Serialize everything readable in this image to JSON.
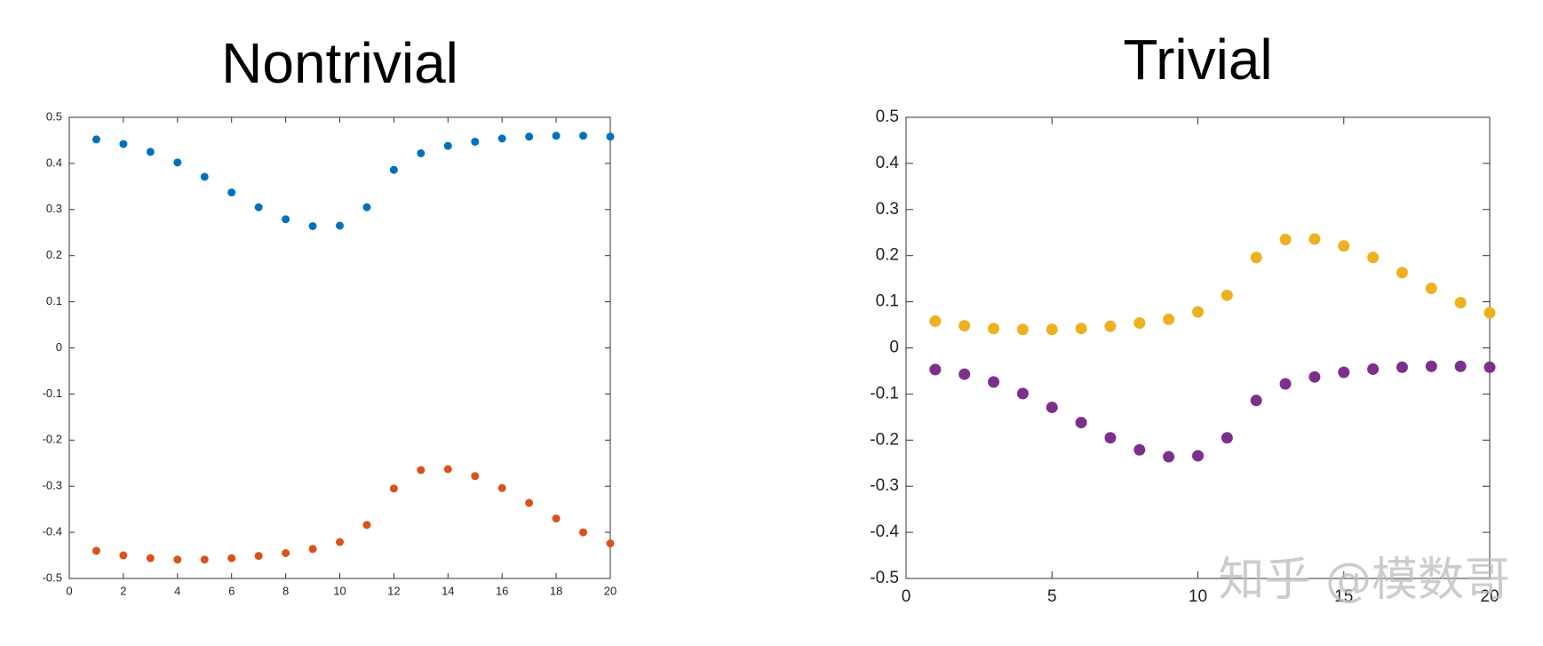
{
  "chart_data": [
    {
      "type": "scatter",
      "title": "Nontrivial",
      "x": [
        1,
        2,
        3,
        4,
        5,
        6,
        7,
        8,
        9,
        10,
        11,
        12,
        13,
        14,
        15,
        16,
        17,
        18,
        19,
        20
      ],
      "series": [
        {
          "color": "#0072bd",
          "values": [
            0.452,
            0.442,
            0.425,
            0.402,
            0.371,
            0.337,
            0.305,
            0.279,
            0.264,
            0.265,
            0.305,
            0.386,
            0.422,
            0.438,
            0.447,
            0.454,
            0.458,
            0.46,
            0.46,
            0.458
          ]
        },
        {
          "color": "#d95319",
          "values": [
            -0.44,
            -0.45,
            -0.456,
            -0.459,
            -0.459,
            -0.456,
            -0.451,
            -0.445,
            -0.436,
            -0.421,
            -0.384,
            -0.305,
            -0.265,
            -0.263,
            -0.278,
            -0.304,
            -0.336,
            -0.37,
            -0.4,
            -0.424
          ]
        }
      ],
      "xlim": [
        0,
        20
      ],
      "xticks": [
        0,
        2,
        4,
        6,
        8,
        10,
        12,
        14,
        16,
        18,
        20
      ],
      "ylim": [
        -0.5,
        0.5
      ],
      "yticks": [
        -0.5,
        -0.4,
        -0.3,
        -0.2,
        -0.1,
        0,
        0.1,
        0.2,
        0.3,
        0.4,
        0.5
      ]
    },
    {
      "type": "scatter",
      "title": "Trivial",
      "x": [
        1,
        2,
        3,
        4,
        5,
        6,
        7,
        8,
        9,
        10,
        11,
        12,
        13,
        14,
        15,
        16,
        17,
        18,
        19,
        20
      ],
      "series": [
        {
          "color": "#edb120",
          "values": [
            0.058,
            0.048,
            0.042,
            0.04,
            0.04,
            0.042,
            0.047,
            0.054,
            0.062,
            0.078,
            0.114,
            0.196,
            0.235,
            0.236,
            0.221,
            0.196,
            0.163,
            0.129,
            0.098,
            0.076
          ]
        },
        {
          "color": "#7e2f8e",
          "values": [
            -0.047,
            -0.057,
            -0.074,
            -0.099,
            -0.129,
            -0.162,
            -0.195,
            -0.221,
            -0.236,
            -0.234,
            -0.195,
            -0.114,
            -0.078,
            -0.063,
            -0.053,
            -0.046,
            -0.042,
            -0.04,
            -0.04,
            -0.042
          ]
        }
      ],
      "xlim": [
        0,
        20
      ],
      "xticks": [
        0,
        5,
        10,
        15,
        20
      ],
      "ylim": [
        -0.5,
        0.5
      ],
      "yticks": [
        -0.5,
        -0.4,
        -0.3,
        -0.2,
        -0.1,
        0,
        0.1,
        0.2,
        0.3,
        0.4,
        0.5
      ]
    }
  ],
  "watermark": "知乎 @模数哥"
}
